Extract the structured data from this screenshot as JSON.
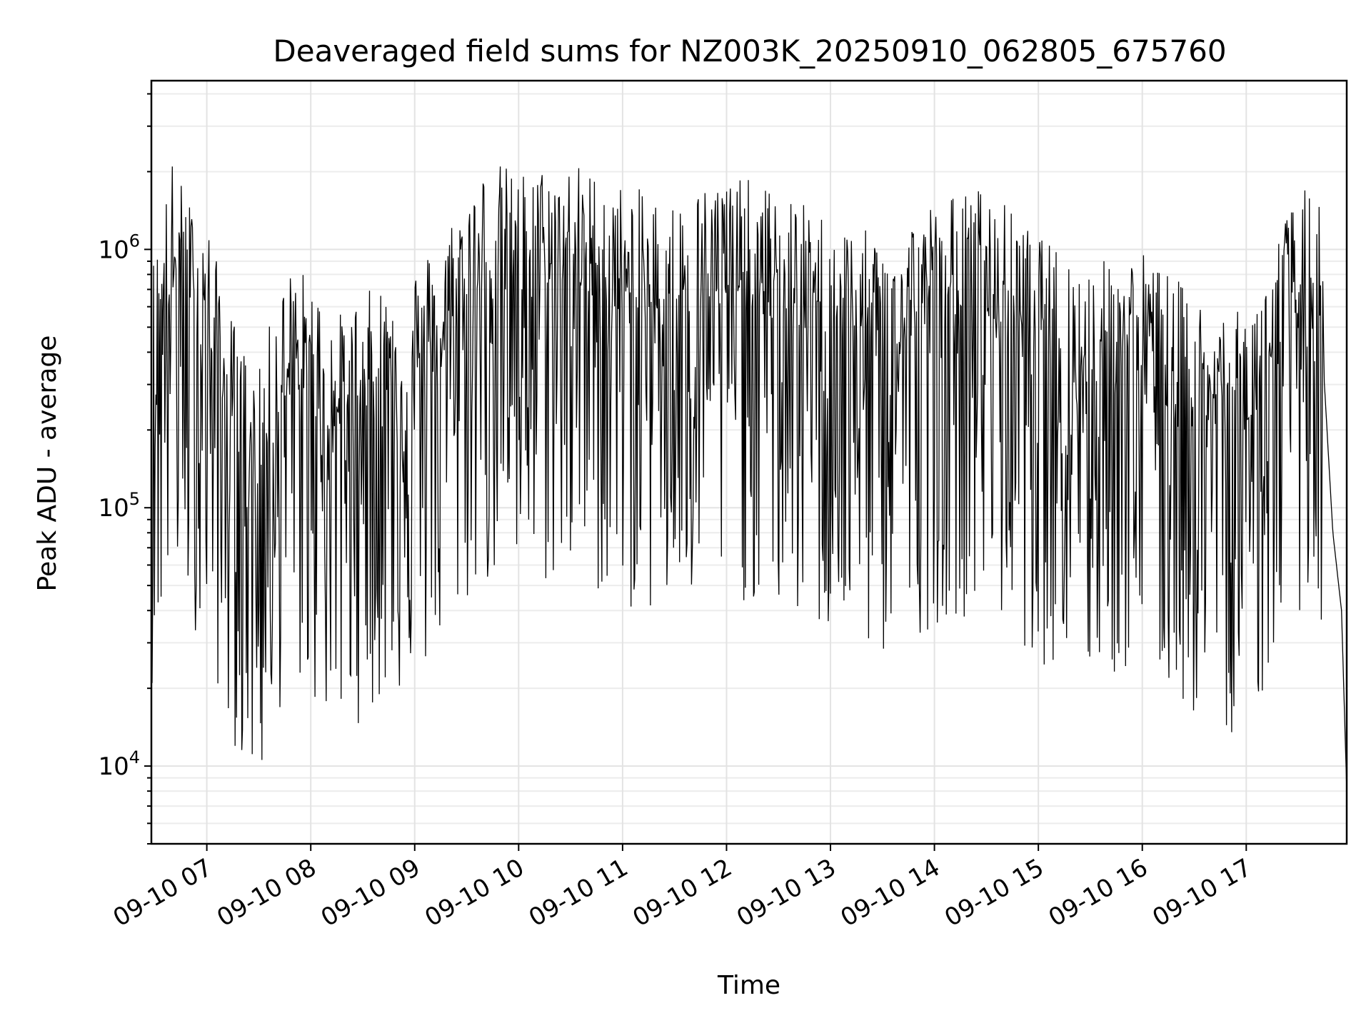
{
  "chart_data": {
    "type": "line",
    "title": "Deaveraged field sums for NZ003K_20250910_062805_675760",
    "xlabel": "Time",
    "ylabel": "Peak ADU - average",
    "yscale": "log",
    "xlim": [
      "2025-09-10 06:28",
      "2025-09-10 17:58"
    ],
    "ylim": [
      5000,
      4500000
    ],
    "grid": true,
    "line_color": "#000000",
    "x_tick_labels": [
      "09-10 07",
      "09-10 08",
      "09-10 09",
      "09-10 10",
      "09-10 11",
      "09-10 12",
      "09-10 13",
      "09-10 14",
      "09-10 15",
      "09-10 16",
      "09-10 17"
    ],
    "y_tick_labels": [
      {
        "base": "10",
        "exp": "4",
        "value": 10000
      },
      {
        "base": "10",
        "exp": "5",
        "value": 100000
      },
      {
        "base": "10",
        "exp": "6",
        "value": 1000000
      }
    ],
    "series": [
      {
        "values_note_free": true,
        "x": [
          "2025-09-10 06:28",
          "2025-09-10 06:40",
          "2025-09-10 06:50",
          "2025-09-10 07:00",
          "2025-09-10 07:10",
          "2025-09-10 07:20",
          "2025-09-10 07:30",
          "2025-09-10 07:40",
          "2025-09-10 07:50",
          "2025-09-10 08:00",
          "2025-09-10 08:15",
          "2025-09-10 08:30",
          "2025-09-10 08:45",
          "2025-09-10 09:00",
          "2025-09-10 09:15",
          "2025-09-10 09:30",
          "2025-09-10 09:45",
          "2025-09-10 10:00",
          "2025-09-10 10:30",
          "2025-09-10 11:00",
          "2025-09-10 11:30",
          "2025-09-10 12:00",
          "2025-09-10 12:30",
          "2025-09-10 13:00",
          "2025-09-10 13:30",
          "2025-09-10 14:00",
          "2025-09-10 14:30",
          "2025-09-10 15:00",
          "2025-09-10 15:30",
          "2025-09-10 16:00",
          "2025-09-10 16:30",
          "2025-09-10 17:00",
          "2025-09-10 17:30",
          "2025-09-10 17:42",
          "2025-09-10 17:50",
          "2025-09-10 17:55",
          "2025-09-10 17:58"
        ],
        "y": [
          400000,
          1000000,
          700000,
          600000,
          300000,
          200000,
          150000,
          300000,
          400000,
          350000,
          250000,
          300000,
          350000,
          400000,
          500000,
          800000,
          1000000,
          900000,
          1000000,
          800000,
          700000,
          900000,
          750000,
          600000,
          500000,
          700000,
          800000,
          500000,
          400000,
          450000,
          300000,
          250000,
          800000,
          700000,
          80000,
          40000,
          8000
        ]
      }
    ]
  }
}
